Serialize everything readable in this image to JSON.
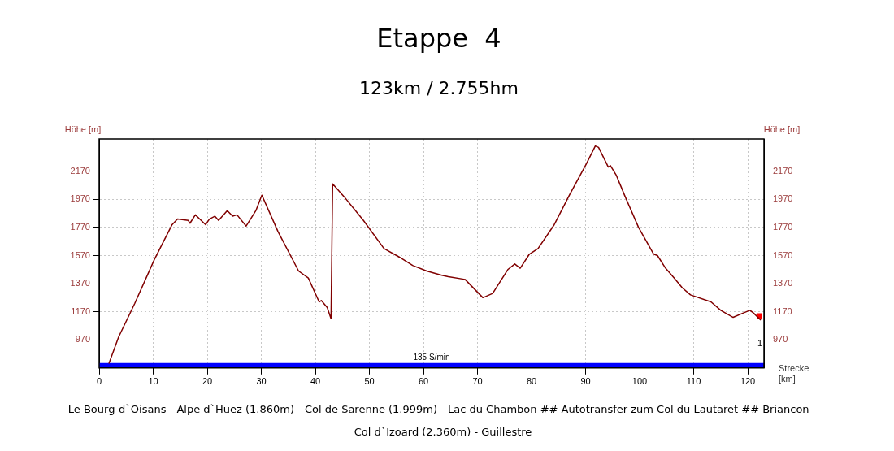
{
  "chart_data": {
    "type": "line",
    "title": "Etappe  4",
    "subtitle": "123km / 2.755hm",
    "xlabel": "Strecke [km]",
    "ylabel": "Höhe [m]",
    "y2label": "Höhe [m]",
    "xlim": [
      0,
      123
    ],
    "xticks": [
      0,
      10,
      20,
      30,
      40,
      50,
      60,
      70,
      80,
      90,
      100,
      110,
      120
    ],
    "ylim": [
      770,
      2400
    ],
    "yticks": [
      970,
      1170,
      1370,
      1570,
      1770,
      1970,
      2170
    ],
    "y2lim": [
      770,
      2400
    ],
    "y2ticks": [
      970,
      1170,
      1370,
      1570,
      1770,
      1970,
      2170
    ],
    "grid": true,
    "legend": false,
    "marker": "none",
    "series": [
      {
        "color": "#800000",
        "x": [
          1.8,
          3.6,
          6.6,
          10.2,
          13.5,
          14.5,
          16.5,
          16.8,
          17.8,
          18.6,
          19.7,
          20.4,
          21.4,
          22.1,
          23.7,
          24.7,
          25.5,
          27.2,
          29.0,
          30.1,
          33.1,
          36.9,
          38.7,
          40.7,
          41.1,
          42.2,
          42.9,
          43.2,
          45.3,
          48.9,
          52.7,
          55.5,
          58.0,
          60.6,
          63.4,
          64.6,
          67.7,
          71.0,
          72.8,
          75.6,
          76.9,
          77.9,
          79.6,
          81.2,
          84.2,
          87.0,
          90.1,
          91.8,
          92.4,
          94.2,
          94.6,
          95.7,
          97.2,
          99.8,
          102.6,
          103.3,
          104.8,
          106.4,
          107.9,
          109.4,
          113.2,
          115.0,
          117.3,
          119.1,
          120.4,
          121.1,
          122.4
        ],
        "values": [
          800,
          990,
          1230,
          1540,
          1790,
          1830,
          1820,
          1800,
          1860,
          1830,
          1790,
          1830,
          1850,
          1820,
          1890,
          1850,
          1860,
          1780,
          1890,
          2000,
          1740,
          1460,
          1410,
          1240,
          1250,
          1200,
          1120,
          2080,
          1990,
          1820,
          1620,
          1560,
          1500,
          1460,
          1430,
          1420,
          1400,
          1270,
          1300,
          1470,
          1510,
          1480,
          1580,
          1620,
          1790,
          2000,
          2220,
          2350,
          2340,
          2200,
          2210,
          2140,
          2000,
          1770,
          1580,
          1570,
          1480,
          1410,
          1340,
          1290,
          1240,
          1180,
          1130,
          1160,
          1180,
          1160,
          1110
        ]
      },
      {
        "type": "scatter",
        "color": "#ff0000",
        "marker": "square",
        "x": [
          122.2
        ],
        "values": [
          1140
        ]
      }
    ],
    "bands": [
      {
        "axis": "y",
        "from": 770,
        "to": 805,
        "label": "135 S/min",
        "color": "#0000ff"
      }
    ],
    "annotations": [
      "1",
      "Le Bourg-d`Oisans - Alpe d`Huez (1.860m) - Col de Sarenne (1.999m) - Lac du Chambon ## Autotransfer zum Col du Lautaret ##  Briancon – Col d`Izoard (2.360m) - Guillestre"
    ]
  }
}
